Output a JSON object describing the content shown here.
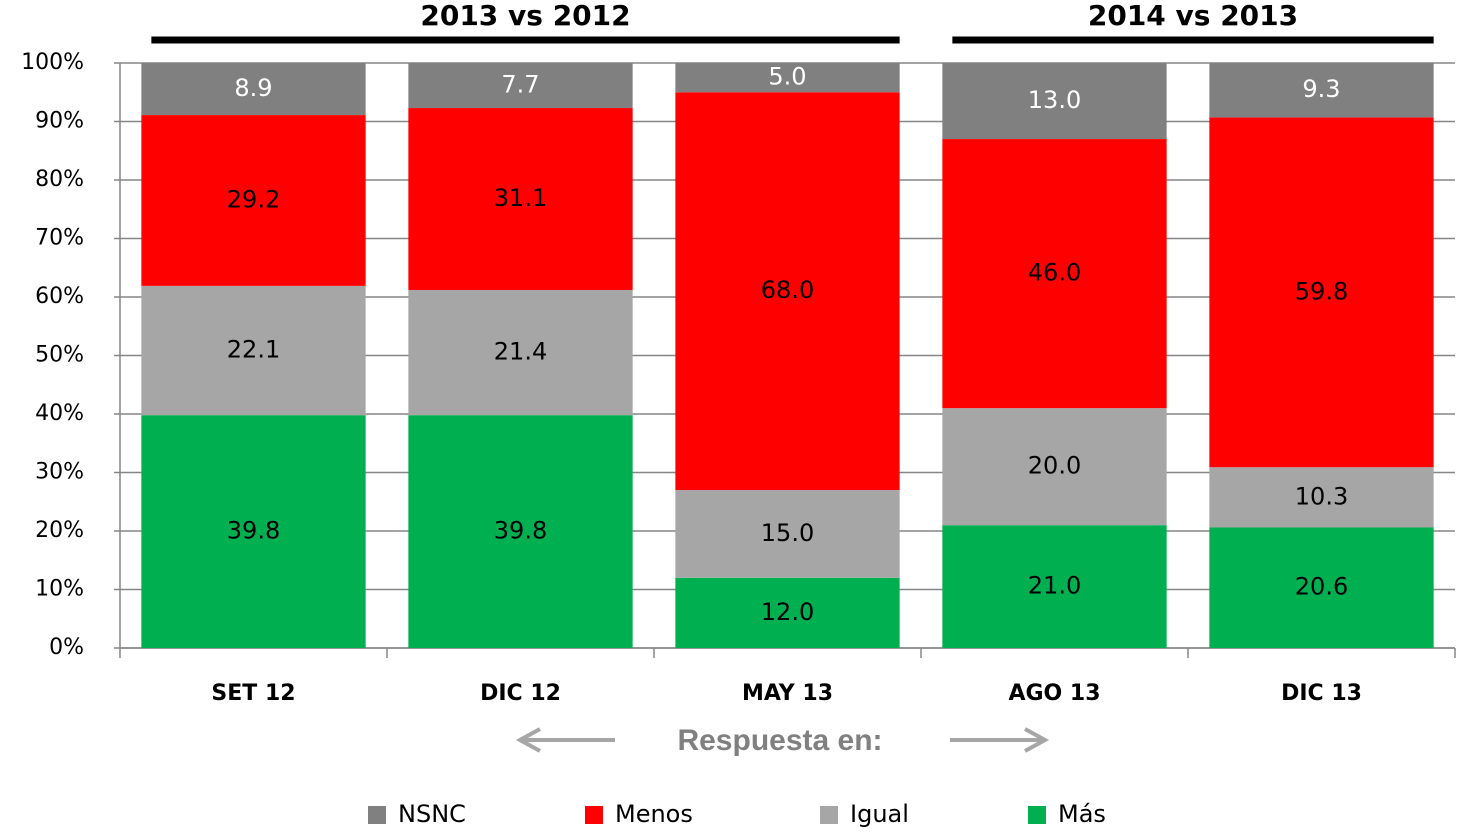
{
  "chart_data": {
    "type": "stacked_bar",
    "categories": [
      "SET 12",
      "DIC 12",
      "MAY 13",
      "AGO 13",
      "DIC 13"
    ],
    "series": [
      {
        "name": "Más",
        "color": "#00b050",
        "label_color": "#000000",
        "values": [
          39.8,
          39.8,
          12,
          21,
          20.6
        ],
        "value_labels": [
          "39.8",
          "39.8",
          "12.0",
          "21.0",
          "20.6"
        ]
      },
      {
        "name": "Igual",
        "color": "#a6a6a6",
        "label_color": "#000000",
        "values": [
          22.1,
          21.4,
          15,
          20,
          10.3
        ],
        "value_labels": [
          "22.1",
          "21.4",
          "15.0",
          "20.0",
          "10.3"
        ]
      },
      {
        "name": "Menos",
        "color": "#ff0000",
        "label_color": "#000000",
        "values": [
          29.2,
          31.1,
          68,
          46,
          59.8
        ],
        "value_labels": [
          "29.2",
          "31.1",
          "68.0",
          "46.0",
          "59.8"
        ]
      },
      {
        "name": "NSNC",
        "color": "#808080",
        "label_color": "#ffffff",
        "values": [
          8.9,
          7.7,
          5,
          13,
          9.3
        ],
        "value_labels": [
          "8.9",
          "7.7",
          "5.0",
          "13.0",
          "9.3"
        ]
      }
    ],
    "groups": [
      {
        "label": "2013 vs 2012",
        "members": [
          "SET 12",
          "DIC 12",
          "MAY 13"
        ]
      },
      {
        "label": "2014 vs 2013",
        "members": [
          "AGO 13",
          "DIC 13"
        ]
      }
    ],
    "x_label": "Respuesta en:",
    "ylim": [
      0,
      100
    ],
    "yticks": [
      {
        "value": 0,
        "label": "0%"
      },
      {
        "value": 10,
        "label": "10%"
      },
      {
        "value": 20,
        "label": "20%"
      },
      {
        "value": 30,
        "label": "30%"
      },
      {
        "value": 40,
        "label": "40%"
      },
      {
        "value": 50,
        "label": "50%"
      },
      {
        "value": 60,
        "label": "60%"
      },
      {
        "value": 70,
        "label": "70%"
      },
      {
        "value": 80,
        "label": "80%"
      },
      {
        "value": 90,
        "label": "90%"
      },
      {
        "value": 100,
        "label": "100%"
      }
    ],
    "grid": true,
    "legend": "bottom"
  }
}
